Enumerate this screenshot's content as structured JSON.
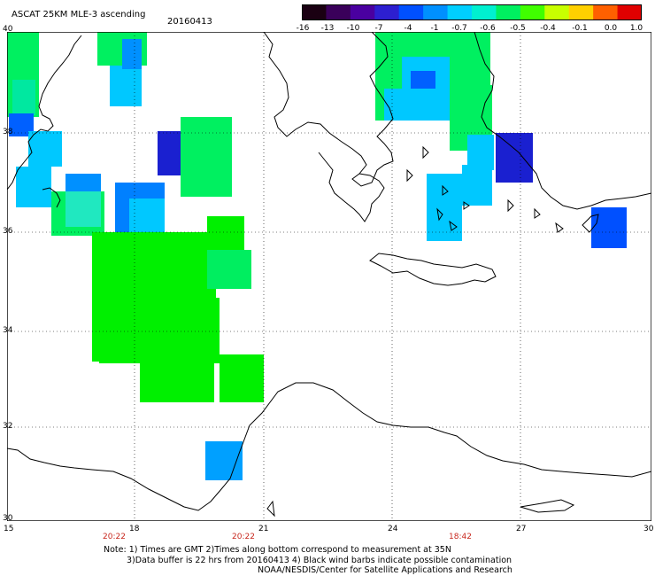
{
  "header": {
    "title": "ASCAT 25KM MLE-3 ascending",
    "date": "20160413"
  },
  "colorbar": {
    "labels": [
      "-16",
      "-13",
      "-10",
      "-7",
      "-4",
      "-1",
      "-0.7",
      "-0.6",
      "-0.5",
      "-0.4",
      "-0.1",
      "0.0",
      "1.0"
    ],
    "colors": [
      "#1a0012",
      "#3a005a",
      "#4a00a0",
      "#2d1fd0",
      "#0050ff",
      "#0090ff",
      "#00cfff",
      "#00f0d0",
      "#00f060",
      "#40ff00",
      "#c8ff00",
      "#ffd000",
      "#ff6000",
      "#e00000"
    ]
  },
  "axes": {
    "lat_labels": [
      "40",
      "38",
      "36",
      "34",
      "32",
      "30"
    ],
    "lon_labels": [
      "15",
      "18",
      "21",
      "24",
      "27",
      "30"
    ],
    "times": [
      "20:22",
      "20:22",
      "18:42"
    ]
  },
  "notes": {
    "line1": "Note: 1) Times are GMT 2)Times along bottom correspond to measurement at 35N",
    "line2": "3)Data buffer is 22 hrs from 20160413 4) Black wind barbs indicate possible contamination",
    "line3": "NOAA/NESDIS/Center for Satellite Applications and Research"
  },
  "palette": {
    "green": "#00f000",
    "cyan": "#00c8ff",
    "blue": "#0044ff",
    "dark_blue": "#1a20d0",
    "sea_green": "#20f0a0"
  }
}
